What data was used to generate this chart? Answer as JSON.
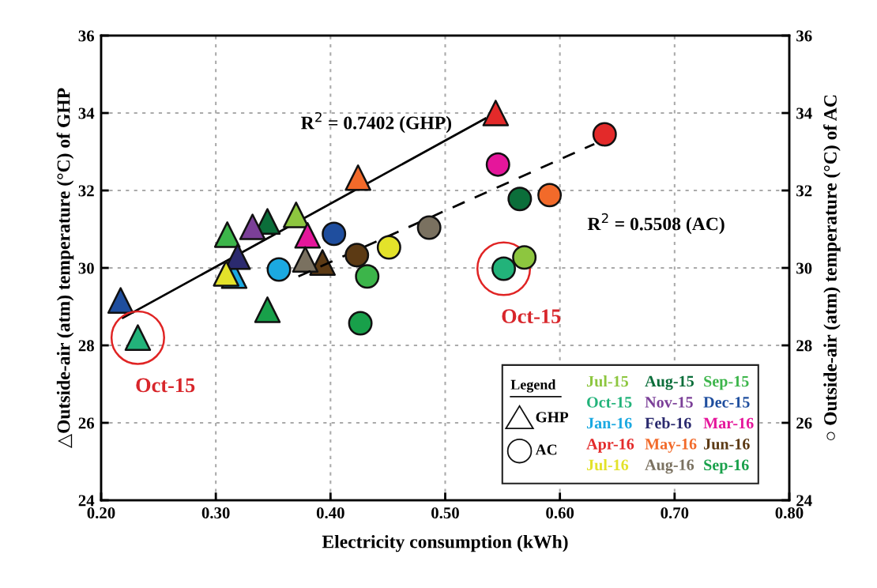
{
  "chart_data": {
    "type": "scatter",
    "xlabel": "Electricity consumption (kWh)",
    "ylabel": "△Outside-air (atm) temperature (°C) of GHP",
    "y2label": "○ Outside-air (atm) temperature (°C) of AC",
    "legend_title": "Legend",
    "xlim": [
      0.2,
      0.8
    ],
    "xticks": [
      {
        "value": 0.2,
        "label": "0.20"
      },
      {
        "value": 0.3,
        "label": "0.30"
      },
      {
        "value": 0.4,
        "label": "0.40"
      },
      {
        "value": 0.5,
        "label": "0.50"
      },
      {
        "value": 0.6,
        "label": "0.60"
      },
      {
        "value": 0.7,
        "label": "0.70"
      },
      {
        "value": 0.8,
        "label": "0.80"
      }
    ],
    "ylim": [
      24,
      36
    ],
    "yticks": [
      24,
      26,
      28,
      30,
      32,
      34,
      36
    ],
    "y2lim": [
      24,
      36
    ],
    "y2ticks": [
      24,
      26,
      28,
      30,
      32,
      34,
      36
    ],
    "grid": true,
    "legend": "bottom right",
    "series": [
      {
        "name": "Jul-15",
        "color": "#8dc63f",
        "marker": "triangle",
        "x": [
          0.37
        ],
        "values": [
          31.37
        ]
      },
      {
        "name": "Aug-15",
        "color": "#0b6e3a",
        "marker": "triangle",
        "x": [
          0.345
        ],
        "values": [
          31.2
        ]
      },
      {
        "name": "Sep-15",
        "color": "#3cb54a",
        "marker": "triangle",
        "x": [
          0.31
        ],
        "values": [
          30.86
        ]
      },
      {
        "name": "Oct-15",
        "color": "#22b37a",
        "marker": "triangle",
        "x": [
          0.232
        ],
        "values": [
          28.2
        ]
      },
      {
        "name": "Nov-15",
        "color": "#7b3f98",
        "marker": "triangle",
        "x": [
          0.332
        ],
        "values": [
          31.06
        ]
      },
      {
        "name": "Dec-15",
        "color": "#1f4e9e",
        "marker": "triangle",
        "x": [
          0.217
        ],
        "values": [
          29.16
        ]
      },
      {
        "name": "Jan-16",
        "color": "#1ba9e1",
        "marker": "triangle",
        "x": [
          0.316
        ],
        "values": [
          29.8
        ]
      },
      {
        "name": "Feb-16",
        "color": "#2b2a6e",
        "marker": "triangle",
        "x": [
          0.319
        ],
        "values": [
          30.29
        ]
      },
      {
        "name": "Mar-16",
        "color": "#e5169b",
        "marker": "triangle",
        "x": [
          0.38
        ],
        "values": [
          30.84
        ]
      },
      {
        "name": "Apr-16",
        "color": "#e32a2a",
        "marker": "triangle",
        "x": [
          0.544
        ],
        "values": [
          34.0
        ]
      },
      {
        "name": "May-16",
        "color": "#f26a2a",
        "marker": "triangle",
        "x": [
          0.424
        ],
        "values": [
          32.33
        ]
      },
      {
        "name": "Jun-16",
        "color": "#5c3a14",
        "marker": "triangle",
        "x": [
          0.393
        ],
        "values": [
          30.14
        ]
      },
      {
        "name": "Jul-16",
        "color": "#e3e22a",
        "marker": "triangle",
        "x": [
          0.309
        ],
        "values": [
          29.86
        ]
      },
      {
        "name": "Aug-16",
        "color": "#7a7160",
        "marker": "triangle",
        "x": [
          0.378
        ],
        "values": [
          30.22
        ]
      },
      {
        "name": "Sep-16",
        "color": "#18a04a",
        "marker": "triangle",
        "x": [
          0.345
        ],
        "values": [
          28.92
        ]
      },
      {
        "color": "#8dc63f",
        "marker": "circle",
        "axis": "y2",
        "x": [
          0.569
        ],
        "values": [
          30.27
        ]
      },
      {
        "color": "#0b6e3a",
        "marker": "circle",
        "axis": "y2",
        "x": [
          0.565
        ],
        "values": [
          31.78
        ]
      },
      {
        "color": "#3cb54a",
        "marker": "circle",
        "axis": "y2",
        "x": [
          0.432
        ],
        "values": [
          29.78
        ]
      },
      {
        "color": "#22b37a",
        "marker": "circle",
        "axis": "y2",
        "x": [
          0.551
        ],
        "values": [
          29.98
        ]
      },
      {
        "color": "#1f4e9e",
        "marker": "circle",
        "axis": "y2",
        "x": [
          0.403
        ],
        "values": [
          30.88
        ]
      },
      {
        "color": "#1ba9e1",
        "marker": "circle",
        "axis": "y2",
        "x": [
          0.355
        ],
        "values": [
          29.96
        ]
      },
      {
        "color": "#e5169b",
        "marker": "circle",
        "axis": "y2",
        "x": [
          0.546
        ],
        "values": [
          32.67
        ]
      },
      {
        "color": "#e32a2a",
        "marker": "circle",
        "axis": "y2",
        "x": [
          0.639
        ],
        "values": [
          33.45
        ]
      },
      {
        "color": "#f26a2a",
        "marker": "circle",
        "axis": "y2",
        "x": [
          0.591
        ],
        "values": [
          31.88
        ]
      },
      {
        "color": "#5c3a14",
        "marker": "circle",
        "axis": "y2",
        "x": [
          0.423
        ],
        "values": [
          30.33
        ]
      },
      {
        "color": "#e3e22a",
        "marker": "circle",
        "axis": "y2",
        "x": [
          0.451
        ],
        "values": [
          30.53
        ]
      },
      {
        "color": "#7a7160",
        "marker": "circle",
        "axis": "y2",
        "x": [
          0.486
        ],
        "values": [
          31.04
        ]
      },
      {
        "color": "#18a04a",
        "marker": "circle",
        "axis": "y2",
        "x": [
          0.426
        ],
        "values": [
          28.57
        ]
      },
      {
        "type": "line",
        "color": "#000000",
        "line_style": "solid",
        "x": [
          0.219,
          0.535
        ],
        "values": [
          28.71,
          33.86
        ]
      },
      {
        "type": "line",
        "color": "#000000",
        "line_style": "dashed",
        "axis": "y2",
        "x": [
          0.372,
          0.63
        ],
        "values": [
          29.78,
          33.2
        ]
      }
    ],
    "annotations": [
      "R$^{2}$ = 0.7402 (GHP)",
      "R$^{2}$ = 0.5508 (AC)",
      "GHP",
      "AC",
      {
        "text": "Oct-15",
        "x": 0.232,
        "y": 28.2
      },
      {
        "text": "Oct-15",
        "x": 0.551,
        "y": 29.98
      }
    ]
  }
}
